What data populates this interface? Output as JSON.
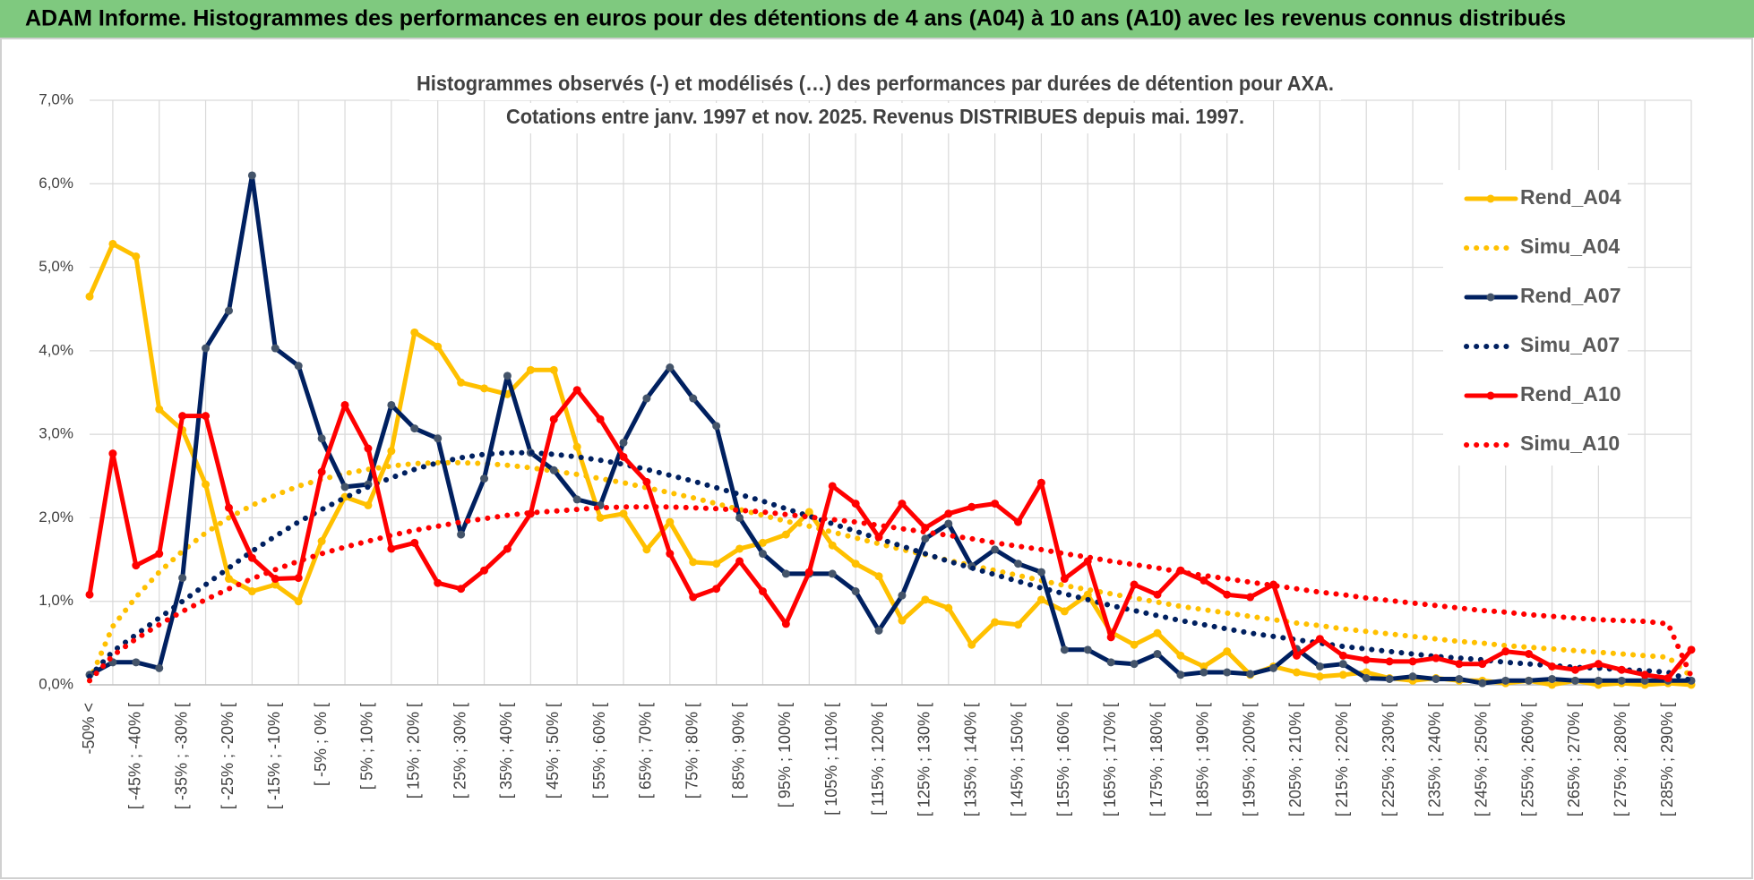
{
  "header": {
    "title": "ADAM Informe. Histogrammes des performances en euros pour des détentions de 4 ans (A04) à 10 ans (A10) avec les revenus connus distribués"
  },
  "chart_data": {
    "type": "line",
    "title": [
      "Histogrammes observés (-) et modélisés (…) des performances par durées de détention pour AXA.",
      "Cotations entre janv. 1997 et nov. 2025. Revenus DISTRIBUES depuis mai. 1997."
    ],
    "categories": [
      "-50% <",
      null,
      "[ -45% ; -40% [",
      null,
      "[ -35% ; -30% [",
      null,
      "[ -25% ; -20% [",
      null,
      "[ -15% ; -10% [",
      null,
      "[ -5% ; 0% [",
      null,
      "[ 5% ; 10% [",
      null,
      "[ 15% ; 20% [",
      null,
      "[ 25% ; 30% [",
      null,
      "[ 35% ; 40% [",
      null,
      "[ 45% ; 50% [",
      null,
      "[ 55% ; 60% [",
      null,
      "[ 65% ; 70% [",
      null,
      "[ 75% ; 80% [",
      null,
      "[ 85% ; 90% [",
      null,
      "[ 95% ; 100% [",
      null,
      "[ 105% ; 110% [",
      null,
      "[ 115% ; 120% [",
      null,
      "[ 125% ; 130% [",
      null,
      "[ 135% ; 140% [",
      null,
      "[ 145% ; 150% [",
      null,
      "[ 155% ; 160% [",
      null,
      "[ 165% ; 170% [",
      null,
      "[ 175% ; 180% [",
      null,
      "[ 185% ; 190% [",
      null,
      "[ 195% ; 200% [",
      null,
      "[ 205% ; 210% [",
      null,
      "[ 215% ; 220% [",
      null,
      "[ 225% ; 230% [",
      null,
      "[ 235% ; 240% [",
      null,
      "[ 245% ; 250% [",
      null,
      "[ 255% ; 260% [",
      null,
      "[ 265% ; 270% [",
      null,
      "[ 275% ; 280% [",
      null,
      "[ 285% ; 290% [",
      null
    ],
    "ylim": [
      0,
      7
    ],
    "yticks": [
      {
        "value": 0,
        "label": "0,0%"
      },
      {
        "value": 1,
        "label": "1,0%"
      },
      {
        "value": 2,
        "label": "2,0%"
      },
      {
        "value": 3,
        "label": "3,0%"
      },
      {
        "value": 4,
        "label": "4,0%"
      },
      {
        "value": 5,
        "label": "5,0%"
      },
      {
        "value": 6,
        "label": "6,0%"
      },
      {
        "value": 7,
        "label": "7,0%"
      }
    ],
    "grid": true,
    "legend": "right",
    "series": [
      {
        "name": "Rend_A04",
        "color": "#FFC000",
        "style": "solid",
        "markers": true,
        "values": [
          4.65,
          5.28,
          5.13,
          3.3,
          3.05,
          2.4,
          1.27,
          1.12,
          1.2,
          1.0,
          1.72,
          2.25,
          2.15,
          2.8,
          4.22,
          4.05,
          3.62,
          3.55,
          3.48,
          3.77,
          3.77,
          2.85,
          2.0,
          2.05,
          1.62,
          1.95,
          1.47,
          1.45,
          1.63,
          1.7,
          1.8,
          2.07,
          1.67,
          1.45,
          1.3,
          0.77,
          1.02,
          0.92,
          0.48,
          0.75,
          0.72,
          1.02,
          0.88,
          1.08,
          0.63,
          0.48,
          0.62,
          0.35,
          0.22,
          0.4,
          0.12,
          0.22,
          0.15,
          0.1,
          0.12,
          0.15,
          0.08,
          0.05,
          0.08,
          0.05,
          0.05,
          0.02,
          0.05,
          0.0,
          0.05,
          0.0,
          0.02,
          0.0,
          0.02,
          0.0
        ]
      },
      {
        "name": "Simu_A04",
        "color": "#FFC000",
        "style": "dotted",
        "markers": false,
        "values": [
          0.05,
          0.7,
          1.05,
          1.35,
          1.6,
          1.82,
          2.0,
          2.15,
          2.27,
          2.38,
          2.46,
          2.53,
          2.58,
          2.62,
          2.65,
          2.66,
          2.66,
          2.65,
          2.63,
          2.6,
          2.56,
          2.52,
          2.47,
          2.42,
          2.36,
          2.3,
          2.24,
          2.17,
          2.1,
          2.03,
          1.96,
          1.9,
          1.83,
          1.76,
          1.69,
          1.62,
          1.56,
          1.49,
          1.43,
          1.37,
          1.31,
          1.25,
          1.19,
          1.14,
          1.09,
          1.04,
          0.99,
          0.94,
          0.9,
          0.86,
          0.82,
          0.78,
          0.74,
          0.71,
          0.67,
          0.64,
          0.61,
          0.58,
          0.55,
          0.52,
          0.5,
          0.47,
          0.45,
          0.43,
          0.41,
          0.39,
          0.37,
          0.35,
          0.33,
          0.1
        ]
      },
      {
        "name": "Rend_A07",
        "color": "#002060",
        "style": "solid",
        "markers": true,
        "marker_color": "#44546A",
        "values": [
          0.12,
          0.27,
          0.27,
          0.2,
          1.28,
          4.03,
          4.48,
          6.1,
          4.03,
          3.82,
          2.95,
          2.37,
          2.4,
          3.35,
          3.07,
          2.95,
          1.8,
          2.47,
          3.7,
          2.78,
          2.57,
          2.22,
          2.15,
          2.9,
          3.43,
          3.8,
          3.43,
          3.1,
          2.0,
          1.57,
          1.33,
          1.33,
          1.33,
          1.12,
          0.65,
          1.07,
          1.75,
          1.93,
          1.42,
          1.62,
          1.45,
          1.35,
          0.42,
          0.42,
          0.27,
          0.25,
          0.37,
          0.12,
          0.15,
          0.15,
          0.13,
          0.2,
          0.43,
          0.22,
          0.25,
          0.08,
          0.07,
          0.1,
          0.07,
          0.07,
          0.02,
          0.05,
          0.05,
          0.07,
          0.05,
          0.05,
          0.05,
          0.05,
          0.05,
          0.05
        ]
      },
      {
        "name": "Simu_A07",
        "color": "#002060",
        "style": "dotted",
        "markers": false,
        "values": [
          0.1,
          0.4,
          0.6,
          0.8,
          1.0,
          1.2,
          1.4,
          1.6,
          1.78,
          1.95,
          2.1,
          2.24,
          2.37,
          2.48,
          2.58,
          2.66,
          2.72,
          2.76,
          2.78,
          2.78,
          2.76,
          2.73,
          2.69,
          2.64,
          2.58,
          2.51,
          2.44,
          2.36,
          2.28,
          2.2,
          2.11,
          2.02,
          1.93,
          1.84,
          1.75,
          1.66,
          1.57,
          1.48,
          1.4,
          1.32,
          1.24,
          1.16,
          1.09,
          1.02,
          0.95,
          0.89,
          0.83,
          0.77,
          0.72,
          0.67,
          0.62,
          0.58,
          0.54,
          0.5,
          0.46,
          0.43,
          0.4,
          0.37,
          0.34,
          0.32,
          0.3,
          0.27,
          0.25,
          0.23,
          0.21,
          0.2,
          0.18,
          0.17,
          0.15,
          0.05
        ]
      },
      {
        "name": "Rend_A10",
        "color": "#FF0000",
        "style": "solid",
        "markers": true,
        "values": [
          1.08,
          2.77,
          1.43,
          1.57,
          3.22,
          3.22,
          2.12,
          1.52,
          1.27,
          1.28,
          2.55,
          3.35,
          2.83,
          1.63,
          1.7,
          1.22,
          1.15,
          1.37,
          1.63,
          2.05,
          3.18,
          3.53,
          3.18,
          2.73,
          2.43,
          1.57,
          1.05,
          1.15,
          1.48,
          1.12,
          0.73,
          1.35,
          2.38,
          2.17,
          1.77,
          2.17,
          1.88,
          2.05,
          2.13,
          2.17,
          1.95,
          2.42,
          1.27,
          1.48,
          0.57,
          1.2,
          1.08,
          1.37,
          1.25,
          1.08,
          1.05,
          1.2,
          0.35,
          0.55,
          0.35,
          0.3,
          0.28,
          0.28,
          0.32,
          0.25,
          0.25,
          0.4,
          0.37,
          0.22,
          0.18,
          0.25,
          0.18,
          0.12,
          0.08,
          0.42
        ]
      },
      {
        "name": "Simu_A10",
        "color": "#FF0000",
        "style": "dotted",
        "markers": false,
        "values": [
          0.05,
          0.35,
          0.55,
          0.72,
          0.88,
          1.02,
          1.15,
          1.27,
          1.38,
          1.48,
          1.57,
          1.65,
          1.72,
          1.79,
          1.85,
          1.9,
          1.95,
          1.99,
          2.03,
          2.06,
          2.08,
          2.1,
          2.12,
          2.13,
          2.13,
          2.13,
          2.12,
          2.11,
          2.09,
          2.07,
          2.04,
          2.01,
          1.98,
          1.95,
          1.91,
          1.87,
          1.83,
          1.79,
          1.75,
          1.7,
          1.66,
          1.62,
          1.57,
          1.53,
          1.48,
          1.44,
          1.4,
          1.35,
          1.31,
          1.27,
          1.23,
          1.19,
          1.15,
          1.11,
          1.08,
          1.04,
          1.01,
          0.98,
          0.95,
          0.92,
          0.89,
          0.87,
          0.84,
          0.82,
          0.8,
          0.78,
          0.77,
          0.76,
          0.73,
          0.1
        ]
      }
    ]
  }
}
